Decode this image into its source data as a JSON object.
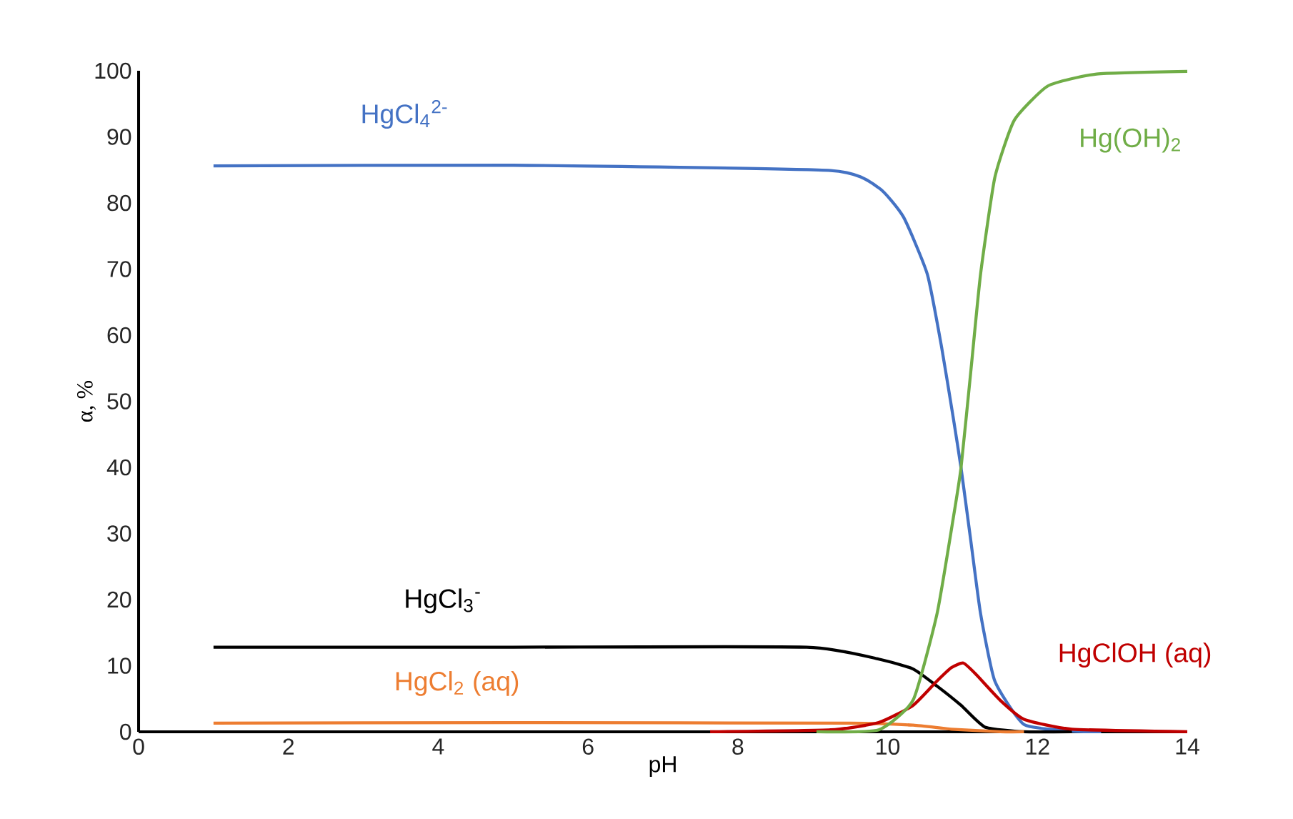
{
  "chart_data": {
    "type": "line",
    "xlabel": "pH",
    "ylabel": "α, %",
    "xlim": [
      0,
      14
    ],
    "ylim": [
      0,
      100
    ],
    "xticks": [
      0,
      2,
      4,
      6,
      8,
      10,
      12,
      14
    ],
    "yticks": [
      0,
      10,
      20,
      30,
      40,
      50,
      60,
      70,
      80,
      90,
      100
    ],
    "grid": false,
    "legend": false,
    "marker": "none",
    "line_style": "solid",
    "series": [
      {
        "name": "HgCl$_{4}$$^{2-}$",
        "color": "#4472c4",
        "x": [
          1,
          5,
          9.24,
          9.88,
          10.21,
          10.53,
          10.72,
          10.88,
          10.98,
          11.11,
          11.24,
          11.43,
          11.82,
          12.46,
          12.85
        ],
        "values": [
          85.6,
          85.7,
          84.9,
          82.3,
          77.9,
          69.2,
          58.2,
          47.2,
          39.9,
          28.9,
          17.9,
          7.7,
          1.1,
          0.1,
          0
        ]
      },
      {
        "name": "HgCl$_{3}$$^{-}$",
        "color": "#000000",
        "x": [
          1,
          5,
          8.92,
          9.88,
          10.34,
          10.66,
          10.98,
          11.3,
          11.82,
          12.46
        ],
        "values": [
          12.8,
          12.8,
          12.8,
          11.0,
          9.5,
          6.9,
          4.0,
          0.7,
          0,
          0
        ]
      },
      {
        "name": "HgCl$_{2}$ (aq)",
        "color": "#ed7d31",
        "x": [
          1,
          5,
          9.5,
          10.34,
          10.85,
          11.5,
          11.82
        ],
        "values": [
          1.3,
          1.4,
          1.3,
          1.0,
          0.4,
          0,
          0
        ]
      },
      {
        "name": "HgClOH (aq)",
        "color": "#c00000",
        "x": [
          7.63,
          9.24,
          9.88,
          10.34,
          10.66,
          10.85,
          11.01,
          11.17,
          11.5,
          11.82,
          12.46,
          14
        ],
        "values": [
          0,
          0.3,
          1.4,
          4.0,
          7.7,
          9.7,
          10.4,
          8.8,
          4.8,
          1.9,
          0.4,
          0
        ]
      },
      {
        "name": "Hg(OH)$_{2}$",
        "color": "#70ad47",
        "x": [
          9.05,
          9.88,
          10.34,
          10.66,
          10.88,
          10.98,
          11.11,
          11.24,
          11.43,
          11.69,
          12.14,
          12.79,
          14
        ],
        "values": [
          0,
          0.3,
          4.8,
          17.9,
          32.6,
          40,
          54.5,
          69.2,
          83.8,
          92.5,
          97.7,
          99.5,
          99.9
        ]
      }
    ]
  }
}
